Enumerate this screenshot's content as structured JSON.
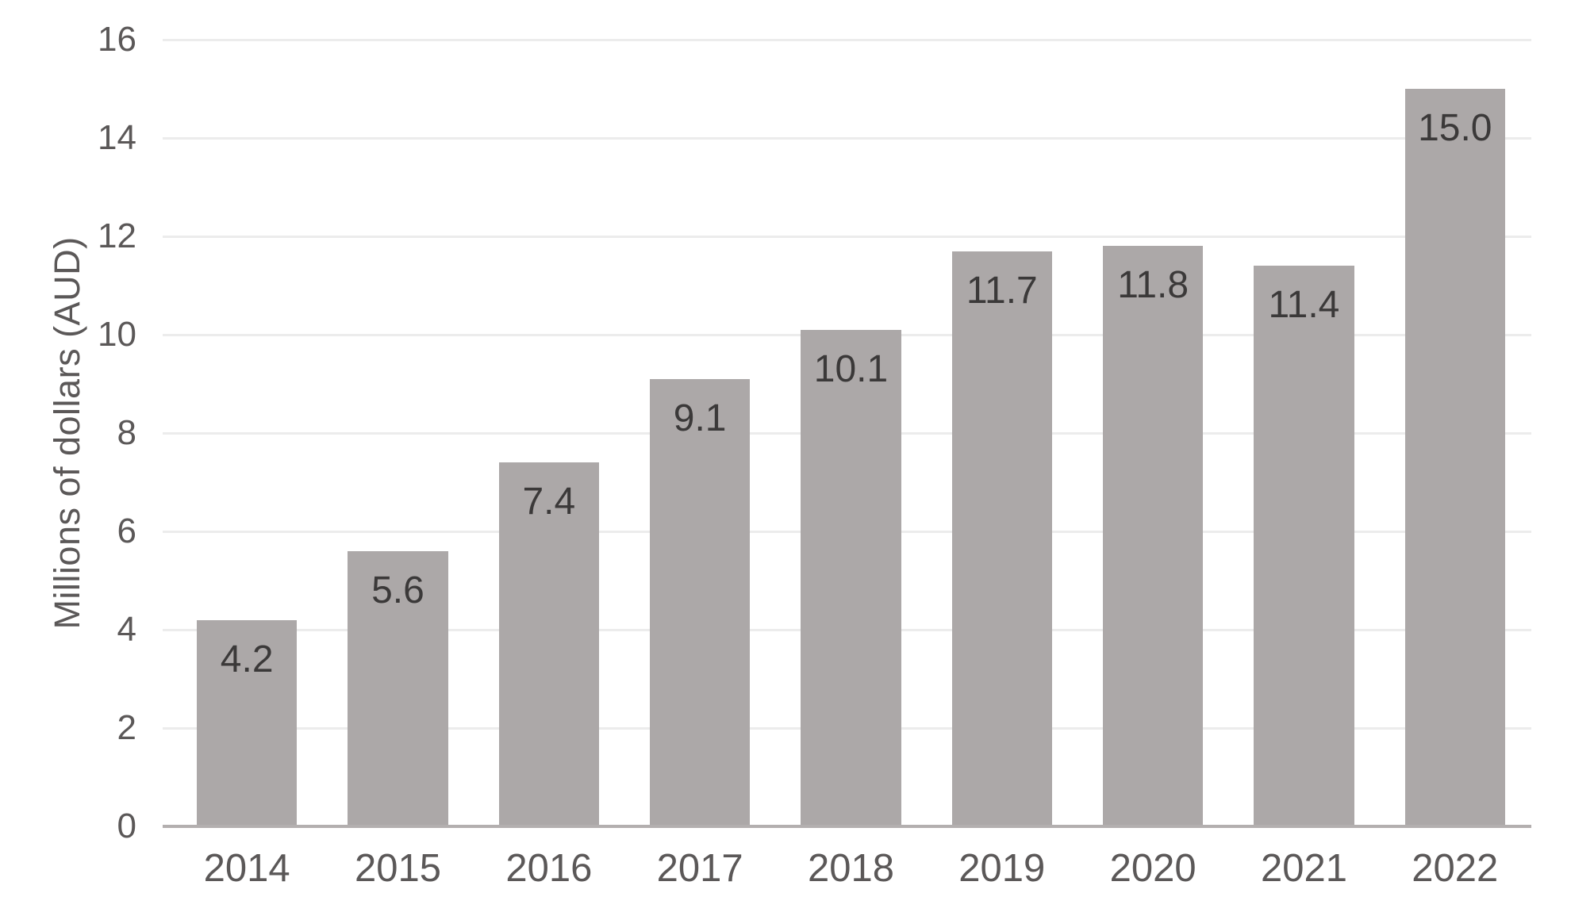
{
  "chart_data": {
    "type": "bar",
    "categories": [
      "2014",
      "2015",
      "2016",
      "2017",
      "2018",
      "2019",
      "2020",
      "2021",
      "2022"
    ],
    "values": [
      4.2,
      5.6,
      7.4,
      9.1,
      10.1,
      11.7,
      11.8,
      11.4,
      15.0
    ],
    "value_labels": [
      "4.2",
      "5.6",
      "7.4",
      "9.1",
      "10.1",
      "11.7",
      "11.8",
      "11.4",
      "15.0"
    ],
    "title": "",
    "xlabel": "",
    "ylabel": "Millions of dollars (AUD)",
    "ylim": [
      0,
      16
    ],
    "yticks": [
      0,
      2,
      4,
      6,
      8,
      10,
      12,
      14,
      16
    ],
    "grid": "horizontal-only",
    "legend": "none",
    "bar_labels_position": "inside-top",
    "colors": {
      "bar": "#aca8a8",
      "value_label": "#3b3939",
      "axis_text": "#5b5858",
      "gridline": "#ececec",
      "axis_line": "#b3afaf",
      "background": "#ffffff"
    }
  }
}
